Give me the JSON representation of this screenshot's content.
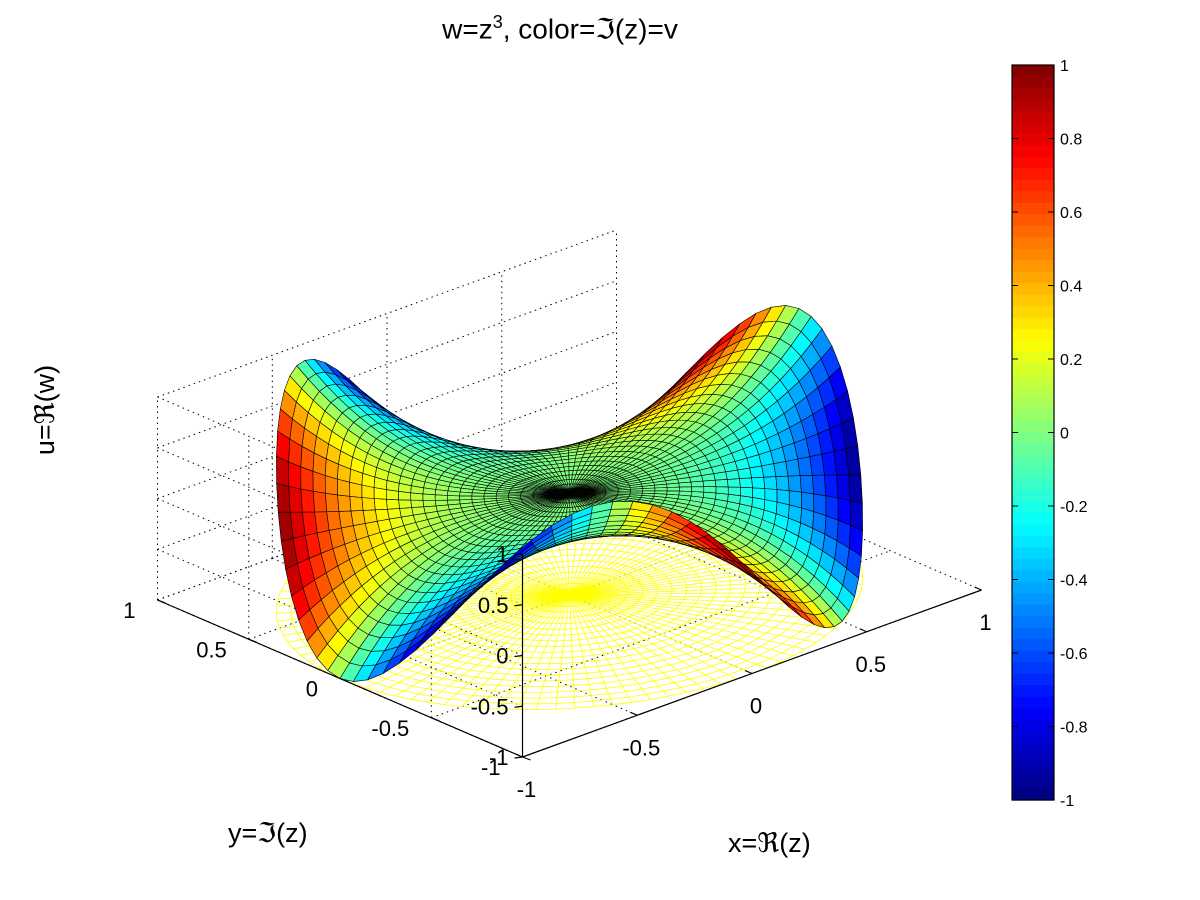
{
  "chart_data": {
    "type": "surface",
    "title": {
      "prefix": "w=z",
      "exponent": "3",
      "suffix": ", color=ℑ(z)=v"
    },
    "xlabel": "x=ℜ(z)",
    "ylabel": "y=ℑ(z)",
    "zlabel": "u=ℜ(w)",
    "function": "w=z^3",
    "surface_z": "real part of w",
    "surface_color": "imaginary part of w",
    "domain": "unit disk",
    "xlim": [
      -1,
      1
    ],
    "ylim": [
      -1,
      1
    ],
    "zlim": [
      -1,
      1
    ],
    "x_ticks": [
      "-1",
      "-0.5",
      "0",
      "0.5",
      "1"
    ],
    "y_ticks": [
      "-1",
      "-0.5",
      "0",
      "0.5",
      "1"
    ],
    "z_ticks": [
      "-1",
      "-0.5",
      "0",
      "0.5",
      "1"
    ],
    "grid": true,
    "colormap": "jet",
    "base_disk_color": "#ffff00",
    "colorbar": {
      "range": [
        -1,
        1
      ],
      "ticks": [
        "1",
        "0.8",
        "0.6",
        "0.4",
        "0.2",
        "0",
        "-0.2",
        "-0.4",
        "-0.6",
        "-0.8",
        "-1"
      ]
    }
  }
}
